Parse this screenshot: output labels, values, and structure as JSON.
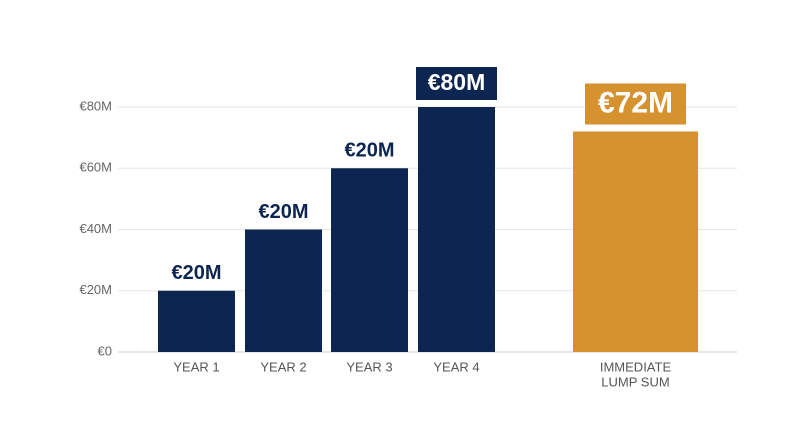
{
  "chart_data": {
    "type": "bar",
    "cumulative": true,
    "categories": [
      "YEAR 1",
      "YEAR 2",
      "YEAR 3",
      "YEAR 4"
    ],
    "values": [
      20,
      20,
      20,
      20
    ],
    "value_labels": [
      "€20M",
      "€20M",
      "€20M",
      null
    ],
    "color": "#0d2651",
    "total": 80,
    "total_label": "€80M",
    "comparison": {
      "category": [
        "IMMEDIATE",
        "LUMP SUM"
      ],
      "value": 72,
      "value_label": "€72M",
      "color": "#d6922f"
    },
    "ylim": [
      0,
      80
    ],
    "yticks": [
      {
        "value": 0,
        "label": "€0"
      },
      {
        "value": 20,
        "label": "€20M"
      },
      {
        "value": 40,
        "label": "€40M"
      },
      {
        "value": 60,
        "label": "€60M"
      },
      {
        "value": 80,
        "label": "€80M"
      }
    ],
    "grid": true
  }
}
